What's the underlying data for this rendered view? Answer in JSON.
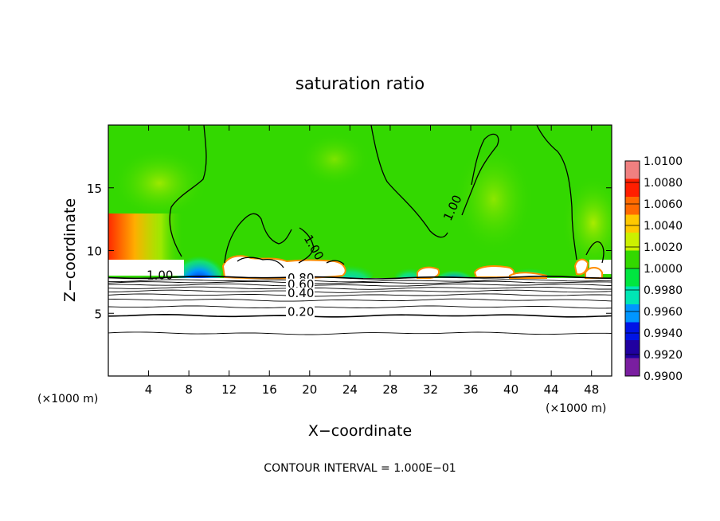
{
  "chart_data": {
    "type": "heatmap",
    "title": "saturation ratio",
    "xlabel": "X−coordinate",
    "ylabel": "Z−coordinate",
    "x_unit_left": "(×1000 m)",
    "x_unit_right": "(×1000 m)",
    "footer": "CONTOUR INTERVAL = 1.000E−01",
    "xlim": [
      0,
      50
    ],
    "ylim": [
      0,
      20
    ],
    "x_ticks": [
      4,
      8,
      12,
      16,
      20,
      24,
      28,
      32,
      36,
      40,
      44,
      48
    ],
    "y_ticks": [
      5,
      10,
      15
    ],
    "contour_labels": [
      {
        "text": "1.00",
        "x": 3.8,
        "z": 7.7
      },
      {
        "text": "0.80",
        "x": 17.8,
        "z": 7.5
      },
      {
        "text": "0.60",
        "x": 17.8,
        "z": 7.0
      },
      {
        "text": "0.40",
        "x": 17.8,
        "z": 6.3
      },
      {
        "text": "0.20",
        "x": 17.8,
        "z": 4.8
      },
      {
        "text": "1.00",
        "x": 19.4,
        "z": 11.0
      },
      {
        "text": "1.00",
        "x": 34.0,
        "z": 12.3
      }
    ],
    "stratified_levels": [
      {
        "value": 1.0,
        "z": 7.85
      },
      {
        "value": 0.95,
        "z": 7.6
      },
      {
        "value": 0.9,
        "z": 7.45
      },
      {
        "value": 0.8,
        "z": 7.25
      },
      {
        "value": 0.7,
        "z": 7.0
      },
      {
        "value": 0.6,
        "z": 6.75
      },
      {
        "value": 0.5,
        "z": 6.45
      },
      {
        "value": 0.4,
        "z": 6.05
      },
      {
        "value": 0.3,
        "z": 5.5
      },
      {
        "value": 0.2,
        "z": 4.8
      },
      {
        "value": 0.1,
        "z": 3.4
      }
    ],
    "colorbar": {
      "labels": [
        "1.0100",
        "1.0080",
        "1.0060",
        "1.0040",
        "1.0020",
        "1.0000",
        "0.9980",
        "0.9960",
        "0.9940",
        "0.9920",
        "0.9900"
      ],
      "colors": [
        "#f08080",
        "#ff1e00",
        "#ff6a00",
        "#ffc800",
        "#ccf000",
        "#33d800",
        "#00e640",
        "#00e6b4",
        "#0096ff",
        "#0014e6",
        "#2000a0",
        "#7a1ea0"
      ]
    },
    "field_description_values": {
      "background": 1.0,
      "left_moist_max": 1.008,
      "sub_cloud_min": 0.994
    }
  }
}
